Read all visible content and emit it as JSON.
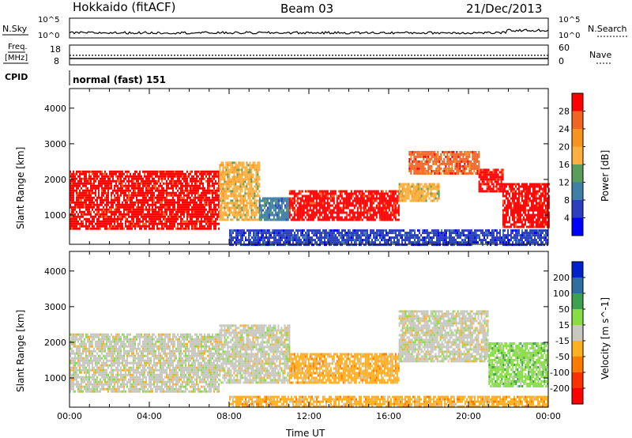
{
  "header": {
    "station": "Hokkaido (fitACF)",
    "beam": "Beam 03",
    "date": "21/Dec/2013"
  },
  "noise_panel": {
    "left_label": "N.Sky",
    "right_label": "N.Search",
    "left_ticks": [
      "10^5",
      "10^0"
    ],
    "right_ticks": [
      "10^5",
      "10^0"
    ]
  },
  "freq_panel": {
    "left_label_top": "Freq.",
    "left_label_unit": "[MHz]",
    "right_label": "Nave",
    "left_ticks": [
      "18",
      "8"
    ],
    "right_ticks": [
      "60",
      "0"
    ]
  },
  "cpid_panel": {
    "label": "CPID",
    "value": "normal (fast) 151"
  },
  "chart_data": [
    {
      "type": "heatmap",
      "quantity": "Power",
      "ylabel": "Slant Range [km]",
      "xlabel": "Time UT",
      "xlim": [
        0,
        24
      ],
      "ylim": [
        180,
        4550
      ],
      "yticks": [
        1000,
        2000,
        3000,
        4000
      ],
      "colorbar": {
        "label": "Power [dB]",
        "ticks": [
          "28",
          "24",
          "20",
          "16",
          "12",
          "8",
          "4"
        ],
        "colors": [
          "#ff0000",
          "#f26422",
          "#f7941d",
          "#fbb040",
          "#5b9e5b",
          "#3f7fa8",
          "#2b3fbf",
          "#0000ff"
        ]
      },
      "regions": [
        {
          "t0": 0.0,
          "t1": 7.5,
          "r0": 600,
          "r1": 2250,
          "level": 0
        },
        {
          "t0": 7.5,
          "t1": 9.5,
          "r0": 900,
          "r1": 2500,
          "level": 3
        },
        {
          "t0": 9.5,
          "t1": 11.0,
          "r0": 900,
          "r1": 1500,
          "level": 5
        },
        {
          "t0": 11.0,
          "t1": 16.5,
          "r0": 900,
          "r1": 1700,
          "level": 0
        },
        {
          "t0": 16.5,
          "t1": 18.5,
          "r0": 1400,
          "r1": 1900,
          "level": 3
        },
        {
          "t0": 17.0,
          "t1": 20.5,
          "r0": 2200,
          "r1": 2800,
          "level": 1
        },
        {
          "t0": 20.5,
          "t1": 21.7,
          "r0": 1700,
          "r1": 2300,
          "level": 0
        },
        {
          "t0": 21.7,
          "t1": 24.0,
          "r0": 700,
          "r1": 1900,
          "level": 0
        },
        {
          "t0": 8.0,
          "t1": 24.0,
          "r0": 200,
          "r1": 600,
          "level": 6
        }
      ]
    },
    {
      "type": "heatmap",
      "quantity": "Velocity",
      "ylabel": "Slant Range [km]",
      "xlabel": "Time UT",
      "xlim": [
        0,
        24
      ],
      "ylim": [
        180,
        4550
      ],
      "yticks": [
        1000,
        2000,
        3000,
        4000
      ],
      "xticks": [
        "00:00",
        "04:00",
        "08:00",
        "12:00",
        "16:00",
        "20:00",
        "00:00"
      ],
      "colorbar": {
        "label": "Velocity [m s^-1]",
        "ticks": [
          "200",
          "100",
          "50",
          "15",
          "-15",
          "-50",
          "-100",
          "-200"
        ],
        "colors": [
          "#0022cc",
          "#2e6fa0",
          "#3fa050",
          "#88dd44",
          "#c8c8c0",
          "#ffb020",
          "#ff7a00",
          "#ff3000",
          "#ff0000"
        ]
      },
      "regions": [
        {
          "t0": 0.0,
          "t1": 7.5,
          "r0": 600,
          "r1": 2250,
          "level": 4
        },
        {
          "t0": 7.5,
          "t1": 11.0,
          "r0": 900,
          "r1": 2500,
          "level": 4
        },
        {
          "t0": 11.0,
          "t1": 16.5,
          "r0": 900,
          "r1": 1700,
          "level": 5
        },
        {
          "t0": 16.5,
          "t1": 21.0,
          "r0": 1500,
          "r1": 2900,
          "level": 4
        },
        {
          "t0": 21.0,
          "t1": 24.0,
          "r0": 800,
          "r1": 2000,
          "level": 3
        },
        {
          "t0": 8.0,
          "t1": 24.0,
          "r0": 200,
          "r1": 500,
          "level": 5
        }
      ]
    }
  ]
}
